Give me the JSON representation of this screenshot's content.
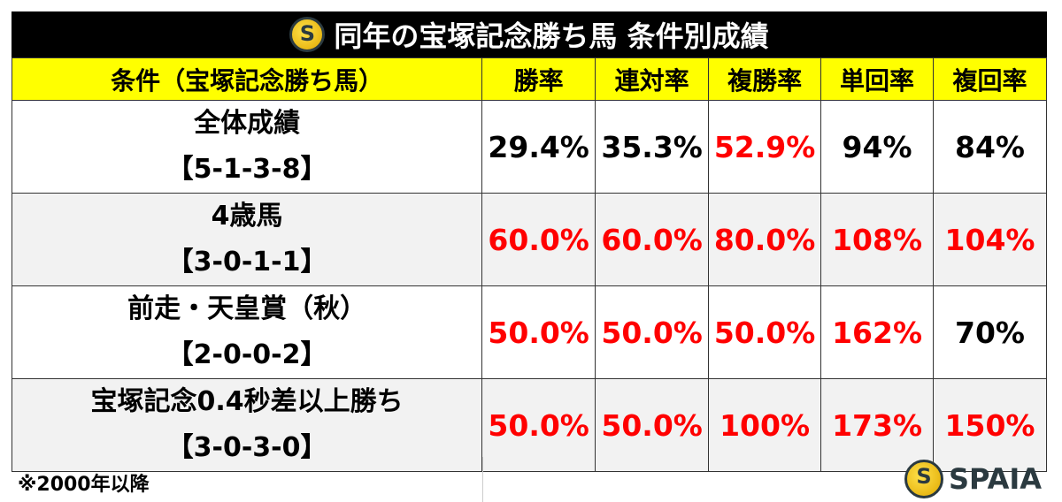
{
  "title": "同年の宝塚記念勝ち馬 条件別成績",
  "headers": [
    "条件（宝塚記念勝ち馬）",
    "勝率",
    "連対率",
    "複勝率",
    "単回率",
    "複回率"
  ],
  "rows": [
    {
      "condition": "全体成績",
      "record": "【5-1-3-8】",
      "values": [
        "29.4%",
        "35.3%",
        "52.9%",
        "94%",
        "84%"
      ],
      "highlight": [
        false,
        false,
        true,
        false,
        false
      ]
    },
    {
      "condition": "4歳馬",
      "record": "【3-0-1-1】",
      "values": [
        "60.0%",
        "60.0%",
        "80.0%",
        "108%",
        "104%"
      ],
      "highlight": [
        true,
        true,
        true,
        true,
        true
      ]
    },
    {
      "condition": "前走・天皇賞（秋）",
      "record": "【2-0-0-2】",
      "values": [
        "50.0%",
        "50.0%",
        "50.0%",
        "162%",
        "70%"
      ],
      "highlight": [
        true,
        true,
        true,
        true,
        false
      ]
    },
    {
      "condition": "宝塚記念0.4秒差以上勝ち",
      "record": "【3-0-3-0】",
      "values": [
        "50.0%",
        "50.0%",
        "100%",
        "173%",
        "150%"
      ],
      "highlight": [
        true,
        true,
        true,
        true,
        true
      ]
    }
  ],
  "note": "※2000年以降",
  "brand": "SPAIA",
  "colors": {
    "header": "#ffff00",
    "highlight": "#ff0000",
    "alt_row": "#f2f2f2"
  }
}
